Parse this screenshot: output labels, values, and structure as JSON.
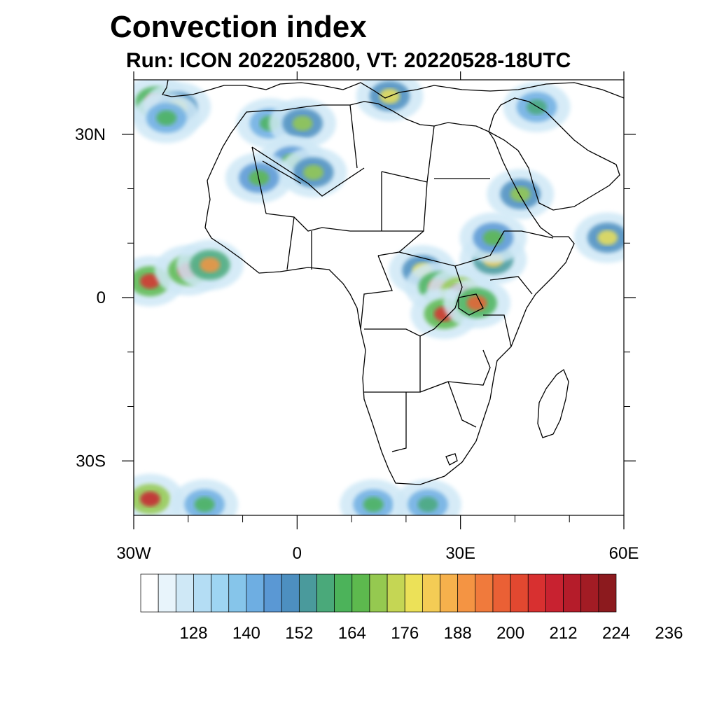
{
  "title": "Convection index",
  "subtitle": "Run: ICON 2022052800,  VT: 20220528-18UTC",
  "map": {
    "lon_range": [
      -30,
      60
    ],
    "lat_range": [
      -40,
      40
    ],
    "lat_ticks": [
      {
        "value": 30,
        "label": "30N"
      },
      {
        "value": 0,
        "label": "0"
      },
      {
        "value": -30,
        "label": "30S"
      }
    ],
    "lon_ticks": [
      {
        "value": -30,
        "label": "30W"
      },
      {
        "value": 0,
        "label": "0"
      },
      {
        "value": 30,
        "label": "30E"
      },
      {
        "value": 60,
        "label": "60E"
      }
    ],
    "minor_lon_ticks": [
      -20,
      -10,
      10,
      20,
      40,
      50
    ],
    "minor_lat_ticks": [
      20,
      10,
      -10,
      -20
    ]
  },
  "colorbar": {
    "colors": [
      "#ffffff",
      "#e8f4fb",
      "#cfe8f6",
      "#b4ddf4",
      "#9ed5f2",
      "#86c5ea",
      "#6eaee2",
      "#5a98d4",
      "#4d8fc0",
      "#4a9a9c",
      "#4aa97a",
      "#4cb35a",
      "#5db94e",
      "#95c950",
      "#c5d654",
      "#ece158",
      "#f4cc55",
      "#f6b14c",
      "#f49443",
      "#f07a3c",
      "#ea6035",
      "#e24830",
      "#d83030",
      "#c82230",
      "#b51c2a",
      "#a21c24",
      "#8c1a1e"
    ],
    "labels": [
      "128",
      "140",
      "152",
      "164",
      "176",
      "188",
      "200",
      "212",
      "224",
      "236"
    ]
  },
  "convection_cells": [
    {
      "lon": -26,
      "lat": 36,
      "value": 205
    },
    {
      "lon": -22,
      "lat": 35,
      "value": 180
    },
    {
      "lon": -24,
      "lat": 33,
      "value": 165
    },
    {
      "lon": -5,
      "lat": 32,
      "value": 165
    },
    {
      "lon": 1,
      "lat": 32,
      "value": 175
    },
    {
      "lon": -1,
      "lat": 25,
      "value": 170
    },
    {
      "lon": 3,
      "lat": 23,
      "value": 175
    },
    {
      "lon": -7,
      "lat": 22,
      "value": 170
    },
    {
      "lon": 17,
      "lat": 37,
      "value": 180
    },
    {
      "lon": -27,
      "lat": 3,
      "value": 210
    },
    {
      "lon": -20,
      "lat": 5,
      "value": 210
    },
    {
      "lon": -16,
      "lat": 6,
      "value": 195
    },
    {
      "lon": 23,
      "lat": 5,
      "value": 180
    },
    {
      "lon": 26,
      "lat": 2,
      "value": 200
    },
    {
      "lon": 30,
      "lat": 1,
      "value": 220
    },
    {
      "lon": 27,
      "lat": -3,
      "value": 210
    },
    {
      "lon": 33,
      "lat": -1,
      "value": 200
    },
    {
      "lon": 36,
      "lat": 7,
      "value": 185
    },
    {
      "lon": 36,
      "lat": 11,
      "value": 170
    },
    {
      "lon": 41,
      "lat": 19,
      "value": 175
    },
    {
      "lon": 57,
      "lat": 11,
      "value": 180
    },
    {
      "lon": -27,
      "lat": -37,
      "value": 215
    },
    {
      "lon": -17,
      "lat": -38,
      "value": 165
    },
    {
      "lon": 14,
      "lat": -38,
      "value": 165
    },
    {
      "lon": 24,
      "lat": -38,
      "value": 160
    },
    {
      "lon": 44,
      "lat": 35,
      "value": 160
    }
  ]
}
